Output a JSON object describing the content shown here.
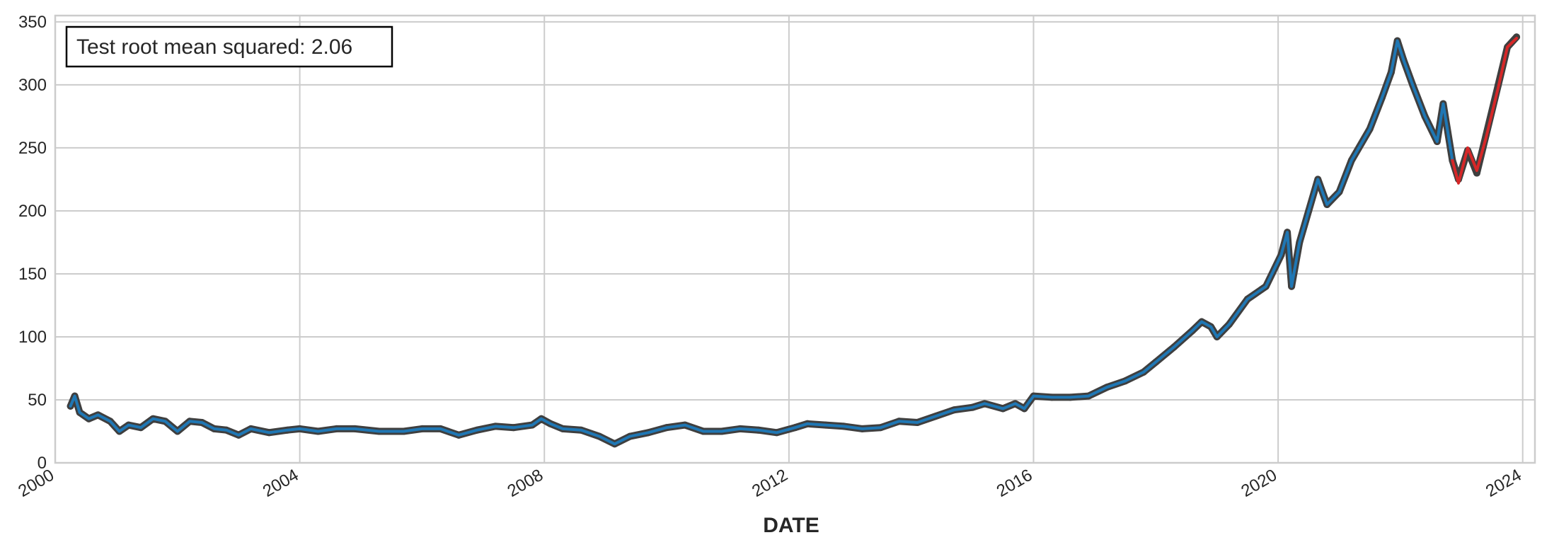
{
  "chart_data": {
    "type": "line",
    "title": "",
    "annotation": "Test root mean squared: 2.06",
    "xlabel": "DATE",
    "ylabel": "",
    "xlim": [
      2000.0,
      2024.2
    ],
    "ylim": [
      0,
      355
    ],
    "x_ticks": [
      2000,
      2004,
      2008,
      2012,
      2016,
      2020,
      2024
    ],
    "x_tick_labels": [
      "2000",
      "2004",
      "2008",
      "2012",
      "2016",
      "2020",
      "2024"
    ],
    "y_ticks": [
      0,
      50,
      100,
      150,
      200,
      250,
      300,
      350
    ],
    "y_tick_labels": [
      "0",
      "50",
      "100",
      "150",
      "200",
      "250",
      "300",
      "350"
    ],
    "grid": true,
    "colors": {
      "actual": "#3f3f3f",
      "train": "#1f77b4",
      "test": "#d62728",
      "grid": "#cccccc",
      "spine": "#cccccc"
    },
    "series": [
      {
        "role": "actual",
        "values": [
          [
            2000.25,
            45
          ],
          [
            2000.32,
            53
          ],
          [
            2000.4,
            40
          ],
          [
            2000.55,
            35
          ],
          [
            2000.7,
            38
          ],
          [
            2000.9,
            33
          ],
          [
            2001.05,
            25
          ],
          [
            2001.2,
            30
          ],
          [
            2001.4,
            28
          ],
          [
            2001.6,
            35
          ],
          [
            2001.8,
            33
          ],
          [
            2002.0,
            25
          ],
          [
            2002.2,
            33
          ],
          [
            2002.4,
            32
          ],
          [
            2002.6,
            27
          ],
          [
            2002.8,
            26
          ],
          [
            2003.0,
            22
          ],
          [
            2003.2,
            27
          ],
          [
            2003.5,
            24
          ],
          [
            2003.8,
            26
          ],
          [
            2004.0,
            27
          ],
          [
            2004.3,
            25
          ],
          [
            2004.6,
            27
          ],
          [
            2004.9,
            27
          ],
          [
            2005.3,
            25
          ],
          [
            2005.7,
            25
          ],
          [
            2006.0,
            27
          ],
          [
            2006.3,
            27
          ],
          [
            2006.6,
            22
          ],
          [
            2006.9,
            26
          ],
          [
            2007.2,
            29
          ],
          [
            2007.5,
            28
          ],
          [
            2007.8,
            30
          ],
          [
            2007.95,
            35
          ],
          [
            2008.1,
            31
          ],
          [
            2008.3,
            27
          ],
          [
            2008.6,
            26
          ],
          [
            2008.9,
            21
          ],
          [
            2009.15,
            15
          ],
          [
            2009.4,
            21
          ],
          [
            2009.7,
            24
          ],
          [
            2010.0,
            28
          ],
          [
            2010.3,
            30
          ],
          [
            2010.6,
            25
          ],
          [
            2010.9,
            25
          ],
          [
            2011.2,
            27
          ],
          [
            2011.5,
            26
          ],
          [
            2011.8,
            24
          ],
          [
            2012.1,
            28
          ],
          [
            2012.3,
            31
          ],
          [
            2012.6,
            30
          ],
          [
            2012.9,
            29
          ],
          [
            2013.2,
            27
          ],
          [
            2013.5,
            28
          ],
          [
            2013.8,
            33
          ],
          [
            2014.1,
            32
          ],
          [
            2014.4,
            37
          ],
          [
            2014.7,
            42
          ],
          [
            2015.0,
            44
          ],
          [
            2015.2,
            47
          ],
          [
            2015.5,
            43
          ],
          [
            2015.7,
            47
          ],
          [
            2015.85,
            43
          ],
          [
            2016.0,
            53
          ],
          [
            2016.3,
            52
          ],
          [
            2016.6,
            52
          ],
          [
            2016.9,
            53
          ],
          [
            2017.2,
            60
          ],
          [
            2017.5,
            65
          ],
          [
            2017.8,
            72
          ],
          [
            2018.0,
            80
          ],
          [
            2018.3,
            92
          ],
          [
            2018.6,
            105
          ],
          [
            2018.75,
            112
          ],
          [
            2018.9,
            108
          ],
          [
            2019.0,
            100
          ],
          [
            2019.2,
            110
          ],
          [
            2019.5,
            130
          ],
          [
            2019.8,
            140
          ],
          [
            2020.05,
            165
          ],
          [
            2020.15,
            183
          ],
          [
            2020.22,
            140
          ],
          [
            2020.35,
            175
          ],
          [
            2020.5,
            200
          ],
          [
            2020.65,
            225
          ],
          [
            2020.8,
            205
          ],
          [
            2021.0,
            215
          ],
          [
            2021.2,
            240
          ],
          [
            2021.5,
            265
          ],
          [
            2021.7,
            290
          ],
          [
            2021.85,
            310
          ],
          [
            2021.95,
            335
          ],
          [
            2022.05,
            320
          ],
          [
            2022.2,
            300
          ],
          [
            2022.4,
            275
          ],
          [
            2022.6,
            255
          ],
          [
            2022.7,
            285
          ],
          [
            2022.85,
            240
          ],
          [
            2022.95,
            225
          ],
          [
            2023.1,
            248
          ],
          [
            2023.25,
            230
          ],
          [
            2023.4,
            260
          ],
          [
            2023.6,
            300
          ],
          [
            2023.75,
            330
          ],
          [
            2023.9,
            338
          ]
        ]
      },
      {
        "role": "train",
        "values": [
          [
            2000.25,
            45
          ],
          [
            2000.32,
            53
          ],
          [
            2000.4,
            40
          ],
          [
            2000.55,
            35
          ],
          [
            2000.7,
            38
          ],
          [
            2000.9,
            33
          ],
          [
            2001.05,
            25
          ],
          [
            2001.2,
            30
          ],
          [
            2001.4,
            28
          ],
          [
            2001.6,
            35
          ],
          [
            2001.8,
            33
          ],
          [
            2002.0,
            25
          ],
          [
            2002.2,
            33
          ],
          [
            2002.4,
            32
          ],
          [
            2002.6,
            27
          ],
          [
            2002.8,
            26
          ],
          [
            2003.0,
            22
          ],
          [
            2003.2,
            27
          ],
          [
            2003.5,
            24
          ],
          [
            2003.8,
            26
          ],
          [
            2004.0,
            27
          ],
          [
            2004.3,
            25
          ],
          [
            2004.6,
            27
          ],
          [
            2004.9,
            27
          ],
          [
            2005.3,
            25
          ],
          [
            2005.7,
            25
          ],
          [
            2006.0,
            27
          ],
          [
            2006.3,
            27
          ],
          [
            2006.6,
            22
          ],
          [
            2006.9,
            26
          ],
          [
            2007.2,
            29
          ],
          [
            2007.5,
            28
          ],
          [
            2007.8,
            30
          ],
          [
            2007.95,
            35
          ],
          [
            2008.1,
            31
          ],
          [
            2008.3,
            27
          ],
          [
            2008.6,
            26
          ],
          [
            2008.9,
            21
          ],
          [
            2009.15,
            15
          ],
          [
            2009.4,
            21
          ],
          [
            2009.7,
            24
          ],
          [
            2010.0,
            28
          ],
          [
            2010.3,
            30
          ],
          [
            2010.6,
            25
          ],
          [
            2010.9,
            25
          ],
          [
            2011.2,
            27
          ],
          [
            2011.5,
            26
          ],
          [
            2011.8,
            24
          ],
          [
            2012.1,
            28
          ],
          [
            2012.3,
            31
          ],
          [
            2012.6,
            30
          ],
          [
            2012.9,
            29
          ],
          [
            2013.2,
            27
          ],
          [
            2013.5,
            28
          ],
          [
            2013.8,
            33
          ],
          [
            2014.1,
            32
          ],
          [
            2014.4,
            37
          ],
          [
            2014.7,
            42
          ],
          [
            2015.0,
            44
          ],
          [
            2015.2,
            47
          ],
          [
            2015.5,
            43
          ],
          [
            2015.7,
            47
          ],
          [
            2015.85,
            43
          ],
          [
            2016.0,
            53
          ],
          [
            2016.3,
            52
          ],
          [
            2016.6,
            52
          ],
          [
            2016.9,
            53
          ],
          [
            2017.2,
            60
          ],
          [
            2017.5,
            65
          ],
          [
            2017.8,
            72
          ],
          [
            2018.0,
            80
          ],
          [
            2018.3,
            92
          ],
          [
            2018.6,
            105
          ],
          [
            2018.75,
            112
          ],
          [
            2018.9,
            108
          ],
          [
            2019.0,
            100
          ],
          [
            2019.2,
            110
          ],
          [
            2019.5,
            130
          ],
          [
            2019.8,
            140
          ],
          [
            2020.05,
            165
          ],
          [
            2020.15,
            183
          ],
          [
            2020.22,
            140
          ],
          [
            2020.35,
            175
          ],
          [
            2020.5,
            200
          ],
          [
            2020.65,
            225
          ],
          [
            2020.8,
            205
          ],
          [
            2021.0,
            215
          ],
          [
            2021.2,
            240
          ],
          [
            2021.5,
            265
          ],
          [
            2021.7,
            290
          ],
          [
            2021.85,
            310
          ],
          [
            2021.95,
            335
          ],
          [
            2022.05,
            320
          ],
          [
            2022.2,
            300
          ],
          [
            2022.4,
            275
          ],
          [
            2022.6,
            255
          ],
          [
            2022.7,
            285
          ],
          [
            2022.85,
            240
          ]
        ]
      },
      {
        "role": "test",
        "values": [
          [
            2022.85,
            240
          ],
          [
            2022.95,
            222
          ],
          [
            2023.1,
            250
          ],
          [
            2023.25,
            232
          ],
          [
            2023.4,
            258
          ],
          [
            2023.6,
            298
          ],
          [
            2023.75,
            330
          ],
          [
            2023.9,
            337
          ]
        ]
      }
    ]
  }
}
